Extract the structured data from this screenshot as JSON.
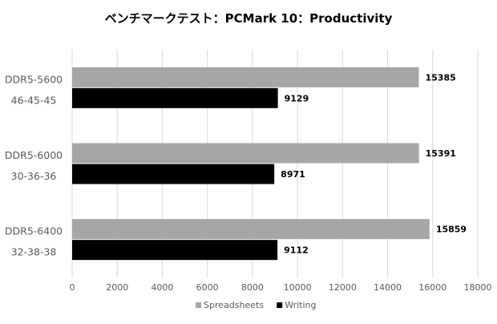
{
  "chart_data": {
    "type": "bar",
    "orientation": "horizontal",
    "title": "ベンチマークテスト：PCMark 10：Productivity",
    "xlabel": "",
    "ylabel": "",
    "xlim": [
      0,
      18000
    ],
    "x_ticks": [
      0,
      2000,
      4000,
      6000,
      8000,
      10000,
      12000,
      14000,
      16000,
      18000
    ],
    "grid": "vertical",
    "legend_position": "bottom",
    "categories": [
      {
        "name": "DDR5-5600",
        "timing": "46-45-45"
      },
      {
        "name": "DDR5-6000",
        "timing": "30-36-36"
      },
      {
        "name": "DDR5-6400",
        "timing": "32-38-38"
      }
    ],
    "series": [
      {
        "name": "Spreadsheets",
        "color": "#a6a6a6",
        "values": [
          15385,
          15391,
          15859
        ]
      },
      {
        "name": "Writing",
        "color": "#000000",
        "values": [
          9129,
          8971,
          9112
        ]
      }
    ]
  }
}
